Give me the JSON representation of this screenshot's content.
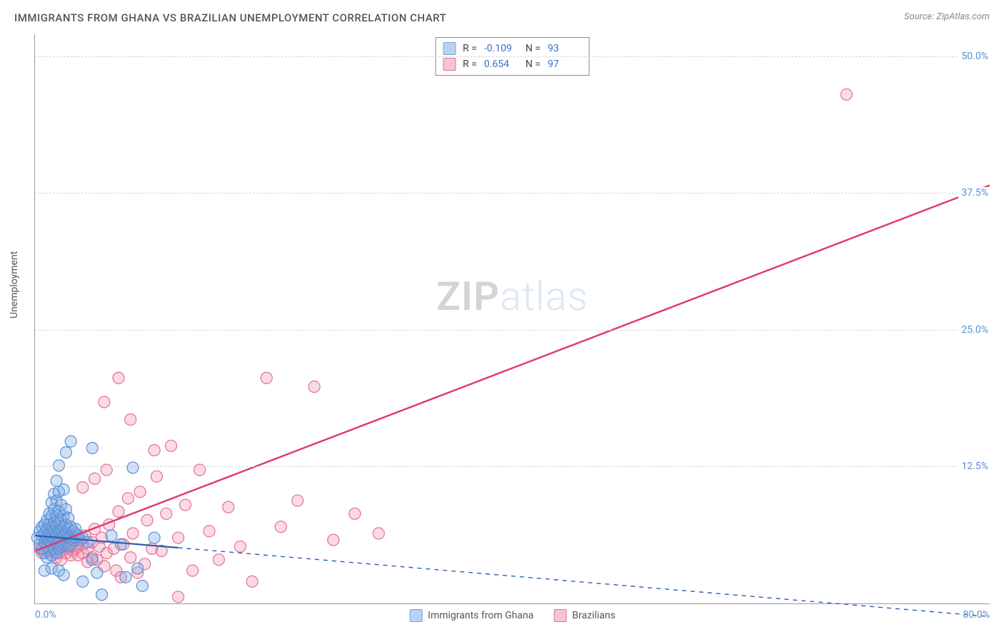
{
  "title": "IMMIGRANTS FROM GHANA VS BRAZILIAN UNEMPLOYMENT CORRELATION CHART",
  "source_label": "Source: ZipAtlas.com",
  "ylabel": "Unemployment",
  "watermark": {
    "bold": "ZIP",
    "light": "atlas"
  },
  "axes": {
    "xlim": [
      0,
      80
    ],
    "ylim": [
      0,
      52
    ],
    "x_ticks_shown": [
      "0.0%",
      "80.0%"
    ],
    "y_ticks": [
      {
        "value": 12.5,
        "label": "12.5%"
      },
      {
        "value": 25.0,
        "label": "25.0%"
      },
      {
        "value": 37.5,
        "label": "37.5%"
      },
      {
        "value": 50.0,
        "label": "50.0%"
      }
    ],
    "grid_color": "#d5d5d5",
    "axis_color": "#999999",
    "tick_color": "#5b8fd6",
    "background_color": "#ffffff"
  },
  "legend_top": [
    {
      "swatch_fill": "#b9d2f0",
      "swatch_stroke": "#6fa3e0",
      "r_label": "R =",
      "r_value": "-0.109",
      "n_label": "N =",
      "n_value": "93"
    },
    {
      "swatch_fill": "#f6c5d3",
      "swatch_stroke": "#e66f95",
      "r_label": "R =",
      "r_value": "0.654",
      "n_label": "N =",
      "n_value": "97"
    }
  ],
  "legend_bottom": [
    {
      "swatch_fill": "#b9d2f0",
      "swatch_stroke": "#6fa3e0",
      "label": "Immigrants from Ghana"
    },
    {
      "swatch_fill": "#f6c5d3",
      "swatch_stroke": "#e66f95",
      "label": "Brazilians"
    }
  ],
  "series": {
    "ghana": {
      "color_fill": "rgba(120,170,230,0.35)",
      "color_stroke": "#5b8fd6",
      "marker_radius": 8,
      "trend_stroke": "#2a5fb0",
      "trend_width": 2.2,
      "trend_dash_after_x": 12,
      "trend_line": {
        "x1": 0,
        "y1": 6.2,
        "x2": 80,
        "y2": -1.2
      },
      "points": [
        [
          0.2,
          6.0
        ],
        [
          0.4,
          5.4
        ],
        [
          0.4,
          6.6
        ],
        [
          0.6,
          5.0
        ],
        [
          0.6,
          6.2
        ],
        [
          0.6,
          7.0
        ],
        [
          0.8,
          4.6
        ],
        [
          0.8,
          5.6
        ],
        [
          0.8,
          6.4
        ],
        [
          0.8,
          7.2
        ],
        [
          1.0,
          4.2
        ],
        [
          1.0,
          5.2
        ],
        [
          1.0,
          6.0
        ],
        [
          1.0,
          6.8
        ],
        [
          1.0,
          7.6
        ],
        [
          1.2,
          4.8
        ],
        [
          1.2,
          5.6
        ],
        [
          1.2,
          6.4
        ],
        [
          1.2,
          7.2
        ],
        [
          1.2,
          8.2
        ],
        [
          1.4,
          4.4
        ],
        [
          1.4,
          5.4
        ],
        [
          1.4,
          6.2
        ],
        [
          1.4,
          7.0
        ],
        [
          1.4,
          8.0
        ],
        [
          1.4,
          9.2
        ],
        [
          1.6,
          5.0
        ],
        [
          1.6,
          5.8
        ],
        [
          1.6,
          6.6
        ],
        [
          1.6,
          7.4
        ],
        [
          1.6,
          8.6
        ],
        [
          1.6,
          10.0
        ],
        [
          1.8,
          4.6
        ],
        [
          1.8,
          5.4
        ],
        [
          1.8,
          6.2
        ],
        [
          1.8,
          7.0
        ],
        [
          1.8,
          8.0
        ],
        [
          1.8,
          9.4
        ],
        [
          1.8,
          11.2
        ],
        [
          2.0,
          5.0
        ],
        [
          2.0,
          5.8
        ],
        [
          2.0,
          6.6
        ],
        [
          2.0,
          7.4
        ],
        [
          2.0,
          8.4
        ],
        [
          2.0,
          10.2
        ],
        [
          2.0,
          12.6
        ],
        [
          2.2,
          5.2
        ],
        [
          2.2,
          6.0
        ],
        [
          2.2,
          6.8
        ],
        [
          2.2,
          7.6
        ],
        [
          2.2,
          9.0
        ],
        [
          2.4,
          5.4
        ],
        [
          2.4,
          6.2
        ],
        [
          2.4,
          7.0
        ],
        [
          2.4,
          8.0
        ],
        [
          2.4,
          10.4
        ],
        [
          2.6,
          5.6
        ],
        [
          2.6,
          6.4
        ],
        [
          2.6,
          7.2
        ],
        [
          2.6,
          8.6
        ],
        [
          2.8,
          5.2
        ],
        [
          2.8,
          6.0
        ],
        [
          2.8,
          6.8
        ],
        [
          2.8,
          7.8
        ],
        [
          3.0,
          5.4
        ],
        [
          3.0,
          6.2
        ],
        [
          3.0,
          7.0
        ],
        [
          3.2,
          5.8
        ],
        [
          3.2,
          6.6
        ],
        [
          3.4,
          6.0
        ],
        [
          3.4,
          6.8
        ],
        [
          3.6,
          6.2
        ],
        [
          3.8,
          5.8
        ],
        [
          4.0,
          6.0
        ],
        [
          4.0,
          2.0
        ],
        [
          4.4,
          5.6
        ],
        [
          4.8,
          4.0
        ],
        [
          5.2,
          2.8
        ],
        [
          5.6,
          0.8
        ],
        [
          6.4,
          6.2
        ],
        [
          7.2,
          5.4
        ],
        [
          7.6,
          2.4
        ],
        [
          8.2,
          12.4
        ],
        [
          8.6,
          3.2
        ],
        [
          4.8,
          14.2
        ],
        [
          2.6,
          13.8
        ],
        [
          3.0,
          14.8
        ],
        [
          9.0,
          1.6
        ],
        [
          10.0,
          6.0
        ],
        [
          0.8,
          3.0
        ],
        [
          1.4,
          3.2
        ],
        [
          2.0,
          3.0
        ],
        [
          2.4,
          2.6
        ]
      ]
    },
    "brazil": {
      "color_fill": "rgba(240,150,180,0.35)",
      "color_stroke": "#e66f95",
      "marker_radius": 8,
      "trend_stroke": "#e03a6b",
      "trend_width": 2.4,
      "trend_line": {
        "x1": 0,
        "y1": 4.8,
        "x2": 80,
        "y2": 38.2
      },
      "points": [
        [
          0.4,
          5.0
        ],
        [
          0.6,
          4.6
        ],
        [
          0.8,
          5.4
        ],
        [
          1.0,
          4.8
        ],
        [
          1.0,
          5.6
        ],
        [
          1.2,
          5.0
        ],
        [
          1.2,
          5.8
        ],
        [
          1.4,
          4.4
        ],
        [
          1.4,
          5.2
        ],
        [
          1.4,
          6.0
        ],
        [
          1.6,
          4.8
        ],
        [
          1.6,
          5.6
        ],
        [
          1.6,
          6.4
        ],
        [
          1.8,
          4.2
        ],
        [
          1.8,
          5.0
        ],
        [
          1.8,
          5.8
        ],
        [
          1.8,
          6.6
        ],
        [
          2.0,
          4.6
        ],
        [
          2.0,
          5.4
        ],
        [
          2.0,
          6.2
        ],
        [
          2.2,
          4.0
        ],
        [
          2.2,
          4.8
        ],
        [
          2.2,
          5.6
        ],
        [
          2.2,
          6.4
        ],
        [
          2.4,
          5.2
        ],
        [
          2.4,
          6.0
        ],
        [
          2.6,
          4.6
        ],
        [
          2.6,
          5.4
        ],
        [
          2.6,
          6.2
        ],
        [
          2.8,
          5.0
        ],
        [
          2.8,
          5.8
        ],
        [
          3.0,
          4.4
        ],
        [
          3.0,
          5.2
        ],
        [
          3.0,
          6.0
        ],
        [
          3.2,
          4.8
        ],
        [
          3.2,
          5.6
        ],
        [
          3.4,
          5.0
        ],
        [
          3.4,
          6.4
        ],
        [
          3.6,
          4.4
        ],
        [
          3.6,
          5.2
        ],
        [
          3.8,
          5.8
        ],
        [
          4.0,
          4.6
        ],
        [
          4.0,
          5.4
        ],
        [
          4.2,
          6.2
        ],
        [
          4.4,
          3.8
        ],
        [
          4.4,
          5.0
        ],
        [
          4.8,
          4.2
        ],
        [
          4.8,
          5.6
        ],
        [
          5.0,
          6.8
        ],
        [
          5.2,
          4.0
        ],
        [
          5.4,
          5.2
        ],
        [
          5.6,
          6.0
        ],
        [
          5.8,
          3.4
        ],
        [
          6.0,
          4.6
        ],
        [
          6.2,
          7.2
        ],
        [
          6.6,
          5.0
        ],
        [
          6.8,
          3.0
        ],
        [
          7.0,
          8.4
        ],
        [
          7.2,
          2.4
        ],
        [
          7.4,
          5.4
        ],
        [
          7.8,
          9.6
        ],
        [
          8.0,
          4.2
        ],
        [
          8.2,
          6.4
        ],
        [
          8.6,
          2.8
        ],
        [
          8.8,
          10.2
        ],
        [
          9.2,
          3.6
        ],
        [
          9.4,
          7.6
        ],
        [
          9.8,
          5.0
        ],
        [
          10.2,
          11.6
        ],
        [
          10.6,
          4.8
        ],
        [
          11.0,
          8.2
        ],
        [
          11.4,
          14.4
        ],
        [
          12.0,
          6.0
        ],
        [
          12.6,
          9.0
        ],
        [
          13.2,
          3.0
        ],
        [
          13.8,
          12.2
        ],
        [
          14.6,
          6.6
        ],
        [
          15.4,
          4.0
        ],
        [
          16.2,
          8.8
        ],
        [
          17.2,
          5.2
        ],
        [
          18.2,
          2.0
        ],
        [
          19.4,
          20.6
        ],
        [
          20.6,
          7.0
        ],
        [
          22.0,
          9.4
        ],
        [
          23.4,
          19.8
        ],
        [
          25.0,
          5.8
        ],
        [
          26.8,
          8.2
        ],
        [
          28.8,
          6.4
        ],
        [
          5.8,
          18.4
        ],
        [
          7.0,
          20.6
        ],
        [
          10.0,
          14.0
        ],
        [
          4.0,
          10.6
        ],
        [
          5.0,
          11.4
        ],
        [
          6.0,
          12.2
        ],
        [
          8.0,
          16.8
        ],
        [
          12.0,
          0.6
        ],
        [
          68.0,
          46.5
        ]
      ]
    }
  }
}
